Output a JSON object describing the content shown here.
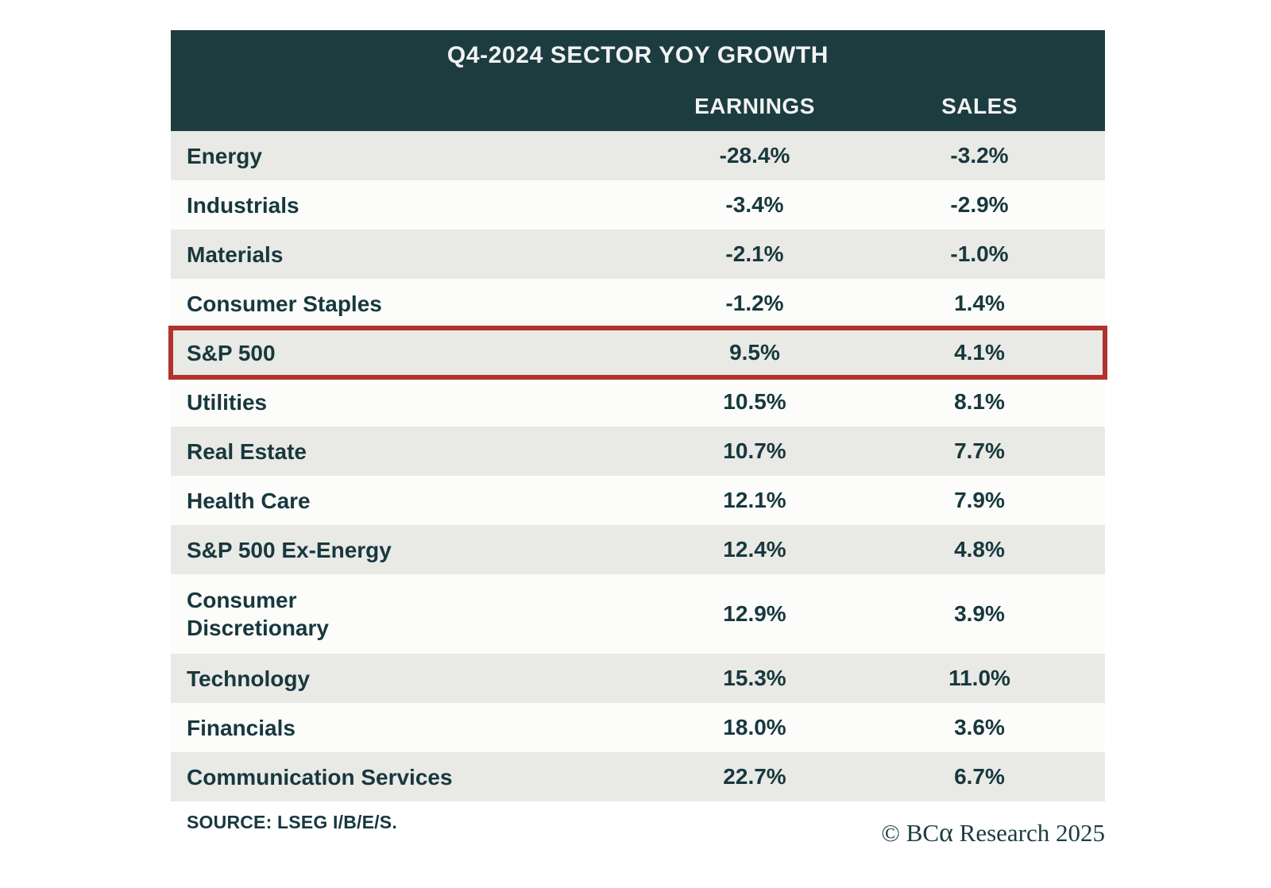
{
  "table": {
    "title": "Q4-2024 SECTOR YOY GROWTH",
    "columns": {
      "earnings": "EARNINGS",
      "sales": "SALES"
    },
    "rows": [
      {
        "sector": "Energy",
        "earnings": "-28.4%",
        "sales": "-3.2%",
        "highlighted": false
      },
      {
        "sector": "Industrials",
        "earnings": "-3.4%",
        "sales": "-2.9%",
        "highlighted": false
      },
      {
        "sector": "Materials",
        "earnings": "-2.1%",
        "sales": "-1.0%",
        "highlighted": false
      },
      {
        "sector": "Consumer Staples",
        "earnings": "-1.2%",
        "sales": "1.4%",
        "highlighted": false
      },
      {
        "sector": "S&P 500",
        "earnings": "9.5%",
        "sales": "4.1%",
        "highlighted": true
      },
      {
        "sector": "Utilities",
        "earnings": "10.5%",
        "sales": "8.1%",
        "highlighted": false
      },
      {
        "sector": "Real Estate",
        "earnings": "10.7%",
        "sales": "7.7%",
        "highlighted": false
      },
      {
        "sector": "Health Care",
        "earnings": "12.1%",
        "sales": "7.9%",
        "highlighted": false
      },
      {
        "sector": "S&P 500 Ex-Energy",
        "earnings": "12.4%",
        "sales": "4.8%",
        "highlighted": false
      },
      {
        "sector": "Consumer Discretionary",
        "earnings": "12.9%",
        "sales": "3.9%",
        "highlighted": false
      },
      {
        "sector": "Technology",
        "earnings": "15.3%",
        "sales": "11.0%",
        "highlighted": false
      },
      {
        "sector": "Financials",
        "earnings": "18.0%",
        "sales": "3.6%",
        "highlighted": false
      },
      {
        "sector": "Communication Services",
        "earnings": "22.7%",
        "sales": "6.7%",
        "highlighted": false
      }
    ]
  },
  "footer": {
    "source": "SOURCE: LSEG I/B/E/S.",
    "copyright_prefix": "© BC",
    "copyright_alpha": "α",
    "copyright_suffix": " Research 2025"
  },
  "colors": {
    "header_bg": "#1d3c40",
    "header_text": "#f2f4f3",
    "row_text": "#17383e",
    "stripe_bg": "#e9e9e5",
    "white_row_bg": "#fcfcfa",
    "highlight_border": "#b2322e"
  },
  "chart_data": {
    "type": "table",
    "title": "Q4-2024 SECTOR YOY GROWTH",
    "categories": [
      "Energy",
      "Industrials",
      "Materials",
      "Consumer Staples",
      "S&P 500",
      "Utilities",
      "Real Estate",
      "Health Care",
      "S&P 500 Ex-Energy",
      "Consumer Discretionary",
      "Technology",
      "Financials",
      "Communication Services"
    ],
    "series": [
      {
        "name": "EARNINGS",
        "values": [
          -28.4,
          -3.4,
          -2.1,
          -1.2,
          9.5,
          10.5,
          10.7,
          12.1,
          12.4,
          12.9,
          15.3,
          18.0,
          22.7
        ]
      },
      {
        "name": "SALES",
        "values": [
          -3.2,
          -2.9,
          -1.0,
          1.4,
          4.1,
          8.1,
          7.7,
          7.9,
          4.8,
          3.9,
          11.0,
          3.6,
          6.7
        ]
      }
    ],
    "units": "percent YoY",
    "highlighted_row": "S&P 500",
    "source": "SOURCE: LSEG I/B/E/S."
  }
}
